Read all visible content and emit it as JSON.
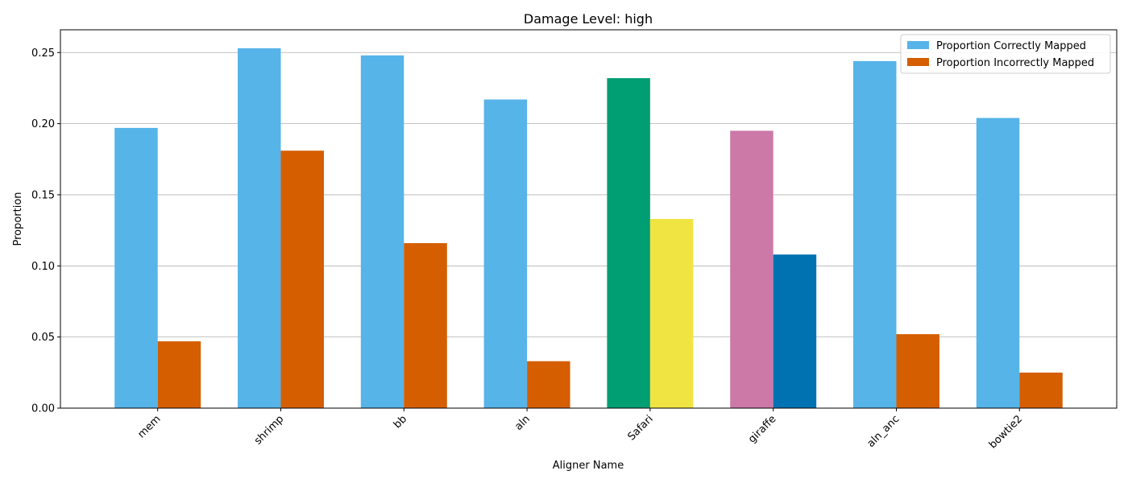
{
  "chart_data": {
    "type": "bar",
    "title": "Damage Level: high",
    "xlabel": "Aligner Name",
    "ylabel": "Proportion",
    "ylim": [
      0,
      0.266
    ],
    "yticks": [
      "0.00",
      "0.05",
      "0.10",
      "0.15",
      "0.20",
      "0.25"
    ],
    "ytick_values": [
      0,
      0.05,
      0.1,
      0.15,
      0.2,
      0.25
    ],
    "grid": "horizontal",
    "legend_position": "top-right",
    "categories": [
      "mem",
      "shrimp",
      "bb",
      "aln",
      "Safari",
      "giraffe",
      "aln_anc",
      "bowtie2"
    ],
    "series": [
      {
        "name": "Proportion Correctly Mapped",
        "color": "#56B4E9",
        "values": [
          0.197,
          0.253,
          0.248,
          0.217,
          0.232,
          0.195,
          0.244,
          0.204
        ],
        "highlight_colors": [
          "#56B4E9",
          "#56B4E9",
          "#56B4E9",
          "#56B4E9",
          "#009E73",
          "#CC79A7",
          "#56B4E9",
          "#56B4E9"
        ]
      },
      {
        "name": "Proportion Incorrectly Mapped",
        "color": "#D55E00",
        "values": [
          0.047,
          0.181,
          0.116,
          0.033,
          0.133,
          0.108,
          0.052,
          0.025
        ],
        "highlight_colors": [
          "#D55E00",
          "#D55E00",
          "#D55E00",
          "#D55E00",
          "#F0E442",
          "#0072B2",
          "#D55E00",
          "#D55E00"
        ]
      }
    ]
  }
}
